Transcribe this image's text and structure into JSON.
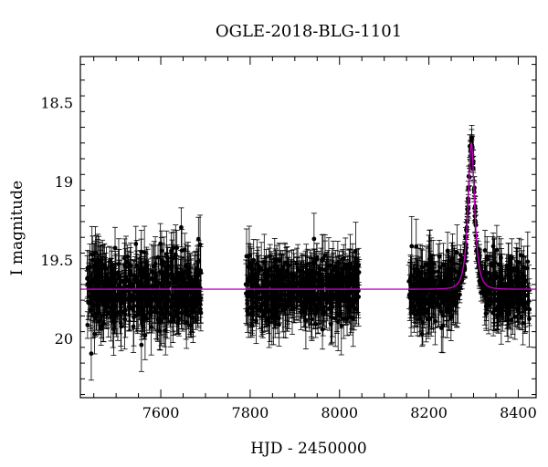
{
  "chart_data": {
    "type": "scatter",
    "title": "OGLE-2018-BLG-1101",
    "xlabel": "HJD - 2450000",
    "ylabel": "I magnitude",
    "xlim": [
      7420,
      8440
    ],
    "ylim": [
      20.37,
      18.2
    ],
    "y_inverted": true,
    "x_ticks": [
      7600,
      7800,
      8000,
      8200,
      8400
    ],
    "y_ticks": [
      18.5,
      19,
      19.5,
      20
    ],
    "x_tick_labels": [
      "7600",
      "7800",
      "8000",
      "8200",
      "8400"
    ],
    "y_tick_labels": [
      "18.5",
      "19",
      "19.5",
      "20"
    ],
    "grid": false,
    "colors": {
      "points": "#000000",
      "model": "#cc00cc"
    },
    "data_segments": [
      {
        "x_start": 7435,
        "x_end": 7690,
        "mag_center": 19.68,
        "mag_spread": 0.2
      },
      {
        "x_start": 7790,
        "x_end": 8045,
        "mag_center": 19.69,
        "mag_spread": 0.17
      },
      {
        "x_start": 8155,
        "x_end": 8425,
        "mag_center": 19.68,
        "mag_spread": 0.17
      }
    ],
    "model": {
      "baseline_mag": 19.68,
      "peak_mag": 18.75,
      "peak_time": 8295,
      "timescale_days": 12,
      "u0": 0.7
    }
  }
}
